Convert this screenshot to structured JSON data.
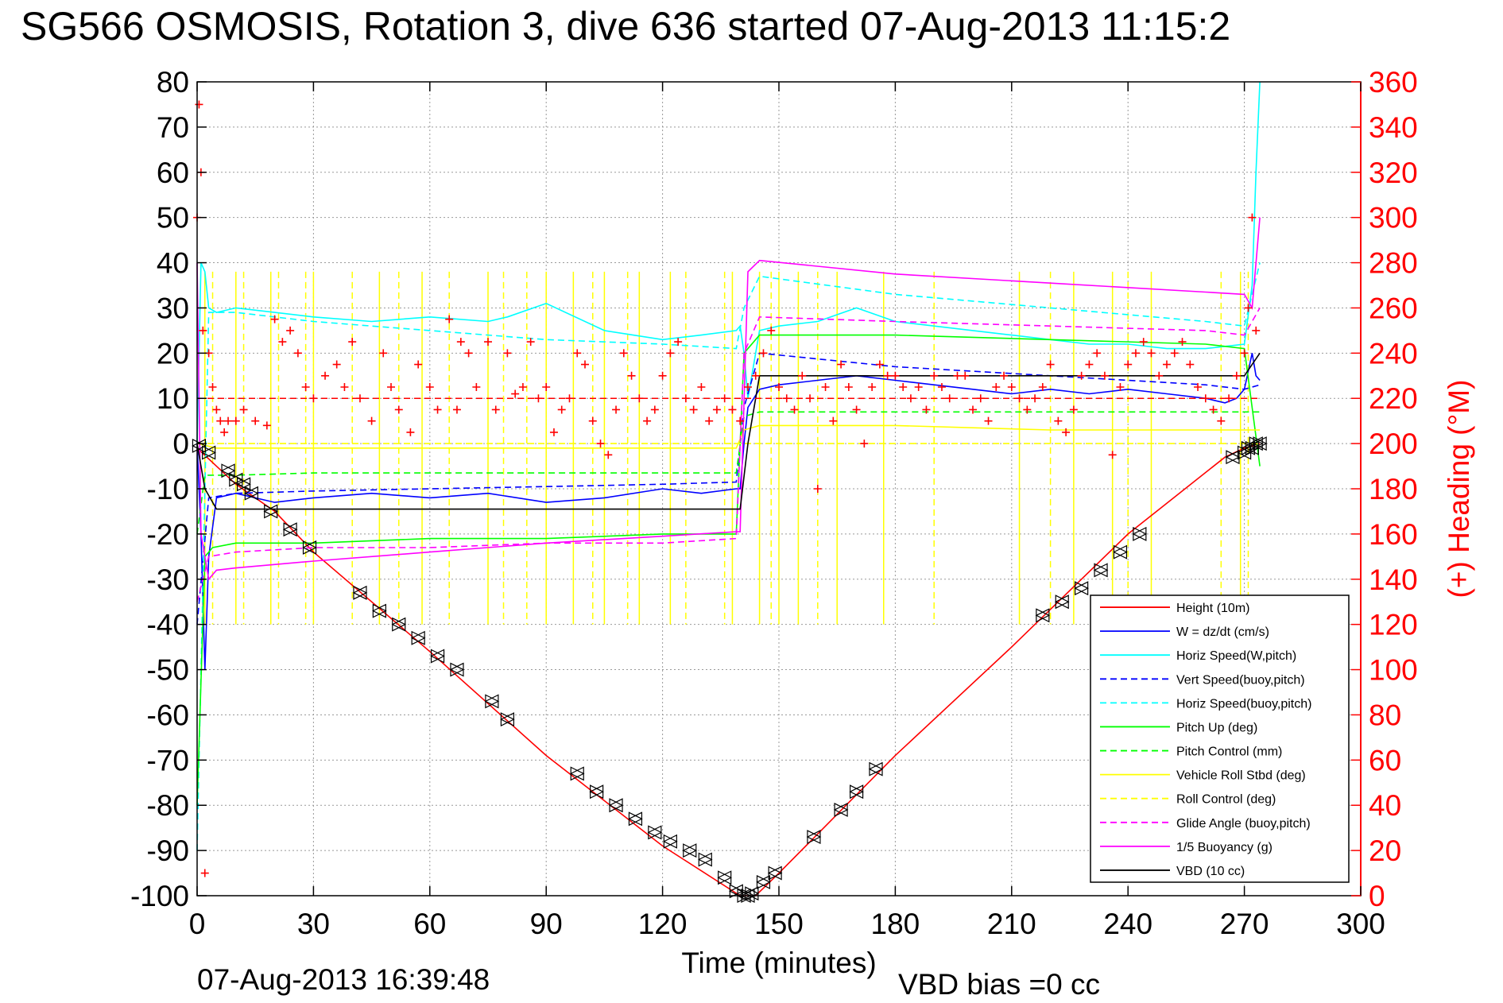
{
  "chart_data": {
    "type": "line",
    "title": "SG566 OSMOSIS, Rotation 3, dive 636 started 07-Aug-2013 11:15:2",
    "xlabel": "Time (minutes)",
    "ylabel": "",
    "y2label": "(+) Heading (°M)",
    "xlim": [
      0,
      300
    ],
    "ylim": [
      -100,
      80
    ],
    "y2lim": [
      0,
      360
    ],
    "xticks": [
      "0",
      "30",
      "60",
      "90",
      "120",
      "150",
      "180",
      "210",
      "240",
      "270",
      "300"
    ],
    "yticks": [
      "80",
      "70",
      "60",
      "50",
      "40",
      "30",
      "20",
      "10",
      "0",
      "-10",
      "-20",
      "-30",
      "-40",
      "-50",
      "-60",
      "-70",
      "-80",
      "-90",
      "-100"
    ],
    "y2ticks": [
      "360",
      "340",
      "320",
      "300",
      "280",
      "260",
      "240",
      "220",
      "200",
      "180",
      "160",
      "140",
      "120",
      "100",
      "80",
      "60",
      "40",
      "20",
      "0"
    ],
    "grid": true,
    "legend_position": "bottom-right",
    "footer_left": "07-Aug-2013 16:39:48",
    "footer_right": "VBD bias =0 cc",
    "colors": {
      "red": "#ff0000",
      "blue": "#0000ff",
      "cyan": "#00ffff",
      "green": "#00ff00",
      "yellow": "#ffff00",
      "magenta": "#ff00ff",
      "black": "#000000"
    },
    "series": [
      {
        "name": "Height (10m)",
        "color": "#ff0000",
        "style": "solid",
        "x": [
          0,
          5,
          10,
          20,
          30,
          60,
          90,
          120,
          140,
          144,
          150,
          180,
          210,
          240,
          265,
          270,
          274
        ],
        "y": [
          -1,
          -5,
          -9,
          -15,
          -24,
          -46,
          -69,
          -89,
          -100,
          -100,
          -95,
          -69,
          -45,
          -20,
          -3,
          -1,
          0
        ]
      },
      {
        "name": "W = dz/dt (cm/s)",
        "color": "#0000ff",
        "style": "solid",
        "x": [
          0,
          1,
          2,
          3,
          5,
          10,
          20,
          30,
          45,
          60,
          75,
          90,
          105,
          120,
          130,
          139,
          140,
          141,
          142,
          145,
          150,
          160,
          170,
          180,
          190,
          200,
          210,
          220,
          230,
          240,
          250,
          260,
          265,
          268,
          270,
          272,
          273,
          274
        ],
        "y": [
          0,
          -20,
          -50,
          -25,
          -12,
          -11,
          -13,
          -12,
          -11,
          -12,
          -11,
          -13,
          -12,
          -10,
          -11,
          -10,
          -10,
          0,
          8,
          12,
          13,
          14,
          15,
          14,
          13,
          12,
          11,
          12,
          11,
          12,
          11,
          10,
          9,
          10,
          12,
          20,
          15,
          14
        ]
      },
      {
        "name": "Horiz Speed(W,pitch)",
        "color": "#00ffff",
        "style": "solid",
        "x": [
          0,
          1,
          2,
          3,
          5,
          10,
          20,
          30,
          45,
          60,
          75,
          80,
          90,
          105,
          120,
          130,
          139,
          140,
          141,
          142,
          145,
          150,
          160,
          170,
          180,
          190,
          200,
          210,
          220,
          230,
          240,
          250,
          260,
          270,
          272,
          273,
          274
        ],
        "y": [
          0,
          40,
          38,
          30,
          29,
          30,
          29,
          28,
          27,
          28,
          27,
          28,
          31,
          25,
          23,
          24,
          25,
          26,
          20,
          10,
          25,
          26,
          27,
          30,
          27,
          26,
          25,
          24,
          23,
          22,
          22,
          21,
          21,
          22,
          35,
          60,
          80
        ]
      },
      {
        "name": "Vert Speed(buoy,pitch)",
        "color": "#0000ff",
        "style": "dashed",
        "x": [
          0,
          3,
          10,
          30,
          60,
          90,
          120,
          139,
          141,
          145,
          180,
          220,
          260,
          270,
          274
        ],
        "y": [
          -40,
          -12,
          -11,
          -10.5,
          -10,
          -9.5,
          -9,
          -8.5,
          8,
          20,
          17,
          15,
          13,
          12,
          13
        ]
      },
      {
        "name": "Horiz Speed(buoy,pitch)",
        "color": "#00ffff",
        "style": "dashed",
        "x": [
          0,
          3,
          10,
          30,
          60,
          90,
          120,
          139,
          141,
          145,
          180,
          220,
          260,
          270,
          274
        ],
        "y": [
          -90,
          29,
          29,
          27,
          25,
          23,
          22,
          21,
          30,
          37,
          33,
          30,
          27,
          26,
          40
        ]
      },
      {
        "name": "Pitch Up (deg)",
        "color": "#00ff00",
        "style": "solid",
        "x": [
          0,
          2,
          4,
          10,
          30,
          60,
          90,
          120,
          139,
          141,
          145,
          180,
          220,
          260,
          270,
          274
        ],
        "y": [
          -80,
          -25,
          -23,
          -22,
          -22,
          -21,
          -21,
          -20,
          -20,
          20,
          24,
          24,
          23,
          22,
          21,
          -5
        ]
      },
      {
        "name": "Pitch Control (mm)",
        "color": "#00ff00",
        "style": "dashed",
        "x": [
          0,
          2,
          10,
          30,
          60,
          90,
          120,
          139,
          141,
          145,
          180,
          220,
          260,
          270,
          274
        ],
        "y": [
          -20,
          -7,
          -7,
          -6.5,
          -6.5,
          -6.5,
          -6.5,
          -6.5,
          6,
          7,
          7,
          7,
          7,
          7,
          7
        ]
      },
      {
        "name": "Vehicle Roll Stbd (deg)",
        "color": "#ffff00",
        "style": "solid",
        "x": [
          0,
          5,
          30,
          60,
          90,
          120,
          139,
          141,
          145,
          180,
          220,
          260,
          270,
          274
        ],
        "y": [
          0,
          -1,
          -1,
          -1,
          -1,
          -1,
          -1,
          3,
          4,
          4,
          3,
          3,
          3,
          3
        ]
      },
      {
        "name": "Roll Control (deg)",
        "color": "#ffff00",
        "style": "dashed",
        "x": [
          0,
          5,
          30,
          60,
          90,
          120,
          139,
          141,
          145,
          180,
          220,
          260,
          270,
          274
        ],
        "y": [
          0,
          0,
          0,
          0,
          0,
          0,
          0,
          0,
          0,
          0,
          0,
          0,
          0,
          0
        ]
      },
      {
        "name": "Glide Angle (buoy,pitch)",
        "color": "#ff00ff",
        "style": "dashed",
        "x": [
          0,
          3,
          10,
          30,
          60,
          90,
          120,
          139,
          141,
          145,
          180,
          220,
          260,
          270,
          274
        ],
        "y": [
          -35,
          -25,
          -24,
          -23,
          -23,
          -22,
          -22,
          -21,
          20,
          28,
          27,
          26,
          25,
          24,
          30
        ]
      },
      {
        "name": "1/5 Buoyancy (g)",
        "color": "#ff00ff",
        "style": "solid",
        "x": [
          0,
          1,
          3,
          5,
          10,
          30,
          60,
          90,
          120,
          139,
          140,
          142,
          145,
          180,
          220,
          260,
          270,
          272,
          274
        ],
        "y": [
          40,
          -20,
          -30,
          -28,
          -27.5,
          -26,
          -24,
          -22,
          -20.5,
          -19.5,
          -19.5,
          38,
          40.5,
          37.5,
          35.5,
          33.5,
          33,
          30,
          50
        ]
      },
      {
        "name": "VBD (10 cc)",
        "color": "#000000",
        "style": "solid",
        "x": [
          0,
          2,
          5,
          140,
          142,
          145,
          265,
          270,
          274
        ],
        "y": [
          0,
          -10,
          -14.5,
          -14.5,
          0,
          15,
          15,
          15,
          20
        ]
      }
    ],
    "heading": {
      "name": "(+) Heading (°M)",
      "x": [
        0,
        0.5,
        1,
        1.5,
        2,
        3,
        4,
        5,
        6,
        7,
        8,
        10,
        12,
        15,
        18,
        20,
        22,
        24,
        26,
        28,
        30,
        33,
        36,
        38,
        40,
        42,
        45,
        48,
        50,
        52,
        55,
        57,
        60,
        62,
        65,
        67,
        68,
        70,
        72,
        75,
        77,
        80,
        82,
        84,
        86,
        88,
        90,
        92,
        94,
        96,
        98,
        100,
        102,
        104,
        106,
        108,
        110,
        112,
        114,
        116,
        118,
        120,
        122,
        124,
        126,
        128,
        130,
        132,
        134,
        136,
        138,
        140,
        142,
        144,
        146,
        148,
        150,
        152,
        154,
        156,
        158,
        160,
        162,
        164,
        166,
        168,
        170,
        172,
        174,
        176,
        178,
        180,
        182,
        184,
        186,
        188,
        190,
        192,
        194,
        196,
        198,
        200,
        202,
        204,
        206,
        208,
        210,
        212,
        214,
        216,
        218,
        220,
        222,
        224,
        226,
        228,
        230,
        232,
        234,
        236,
        238,
        240,
        242,
        244,
        246,
        248,
        250,
        252,
        254,
        256,
        258,
        260,
        262,
        264,
        266,
        268,
        270,
        271,
        272,
        273
      ],
      "y": [
        300,
        350,
        320,
        250,
        10,
        240,
        225,
        215,
        210,
        205,
        210,
        210,
        215,
        210,
        208,
        255,
        245,
        250,
        240,
        225,
        220,
        230,
        235,
        225,
        245,
        220,
        210,
        240,
        225,
        215,
        205,
        235,
        225,
        215,
        255,
        215,
        245,
        240,
        225,
        245,
        215,
        240,
        222,
        225,
        245,
        220,
        225,
        205,
        215,
        220,
        240,
        235,
        210,
        200,
        195,
        215,
        240,
        230,
        220,
        210,
        215,
        230,
        240,
        245,
        220,
        215,
        225,
        210,
        215,
        220,
        215,
        210,
        225,
        230,
        240,
        250,
        225,
        220,
        215,
        230,
        220,
        180,
        225,
        210,
        235,
        225,
        215,
        200,
        225,
        235,
        230,
        230,
        225,
        220,
        225,
        215,
        230,
        225,
        220,
        230,
        230,
        215,
        220,
        210,
        225,
        230,
        225,
        220,
        215,
        220,
        225,
        235,
        210,
        205,
        215,
        230,
        235,
        240,
        230,
        195,
        225,
        235,
        240,
        245,
        240,
        230,
        235,
        240,
        245,
        235,
        225,
        220,
        215,
        210,
        220,
        230,
        240,
        260,
        300,
        250
      ]
    },
    "heading_reference_deg": 220,
    "roll_spikes_solid": [
      2,
      10,
      19,
      30,
      47,
      58,
      75,
      90,
      97,
      105,
      114,
      122,
      138,
      145,
      150,
      155,
      165,
      177,
      212,
      226,
      236,
      246,
      269
    ],
    "roll_spikes_dashed": [
      4,
      12,
      21,
      28,
      40,
      52,
      65,
      79,
      85,
      102,
      111,
      126,
      136,
      148,
      160,
      190,
      220,
      240,
      264,
      271
    ],
    "markers": {
      "name": "depth markers",
      "x": [
        0.5,
        3,
        8,
        10,
        12,
        14,
        19,
        24,
        29,
        42,
        47,
        52,
        57,
        62,
        67,
        76,
        80,
        98,
        103,
        108,
        113,
        118,
        122,
        127,
        131,
        136,
        139,
        141,
        142,
        143,
        146,
        149,
        159,
        166,
        170,
        175,
        218,
        223,
        228,
        233,
        238,
        243,
        267,
        270,
        271,
        272,
        273,
        274
      ],
      "y": [
        -0.5,
        -2,
        -6,
        -8,
        -9,
        -11,
        -15,
        -19,
        -23,
        -33,
        -37,
        -40,
        -43,
        -47,
        -50,
        -57,
        -61,
        -73,
        -77,
        -80,
        -83,
        -86,
        -88,
        -90,
        -92,
        -96,
        -99,
        -100,
        -100,
        -99.5,
        -97,
        -95,
        -87,
        -81,
        -77,
        -72,
        -38,
        -35,
        -32,
        -28,
        -24,
        -20,
        -3,
        -2,
        -1,
        -1,
        0,
        0
      ]
    }
  }
}
